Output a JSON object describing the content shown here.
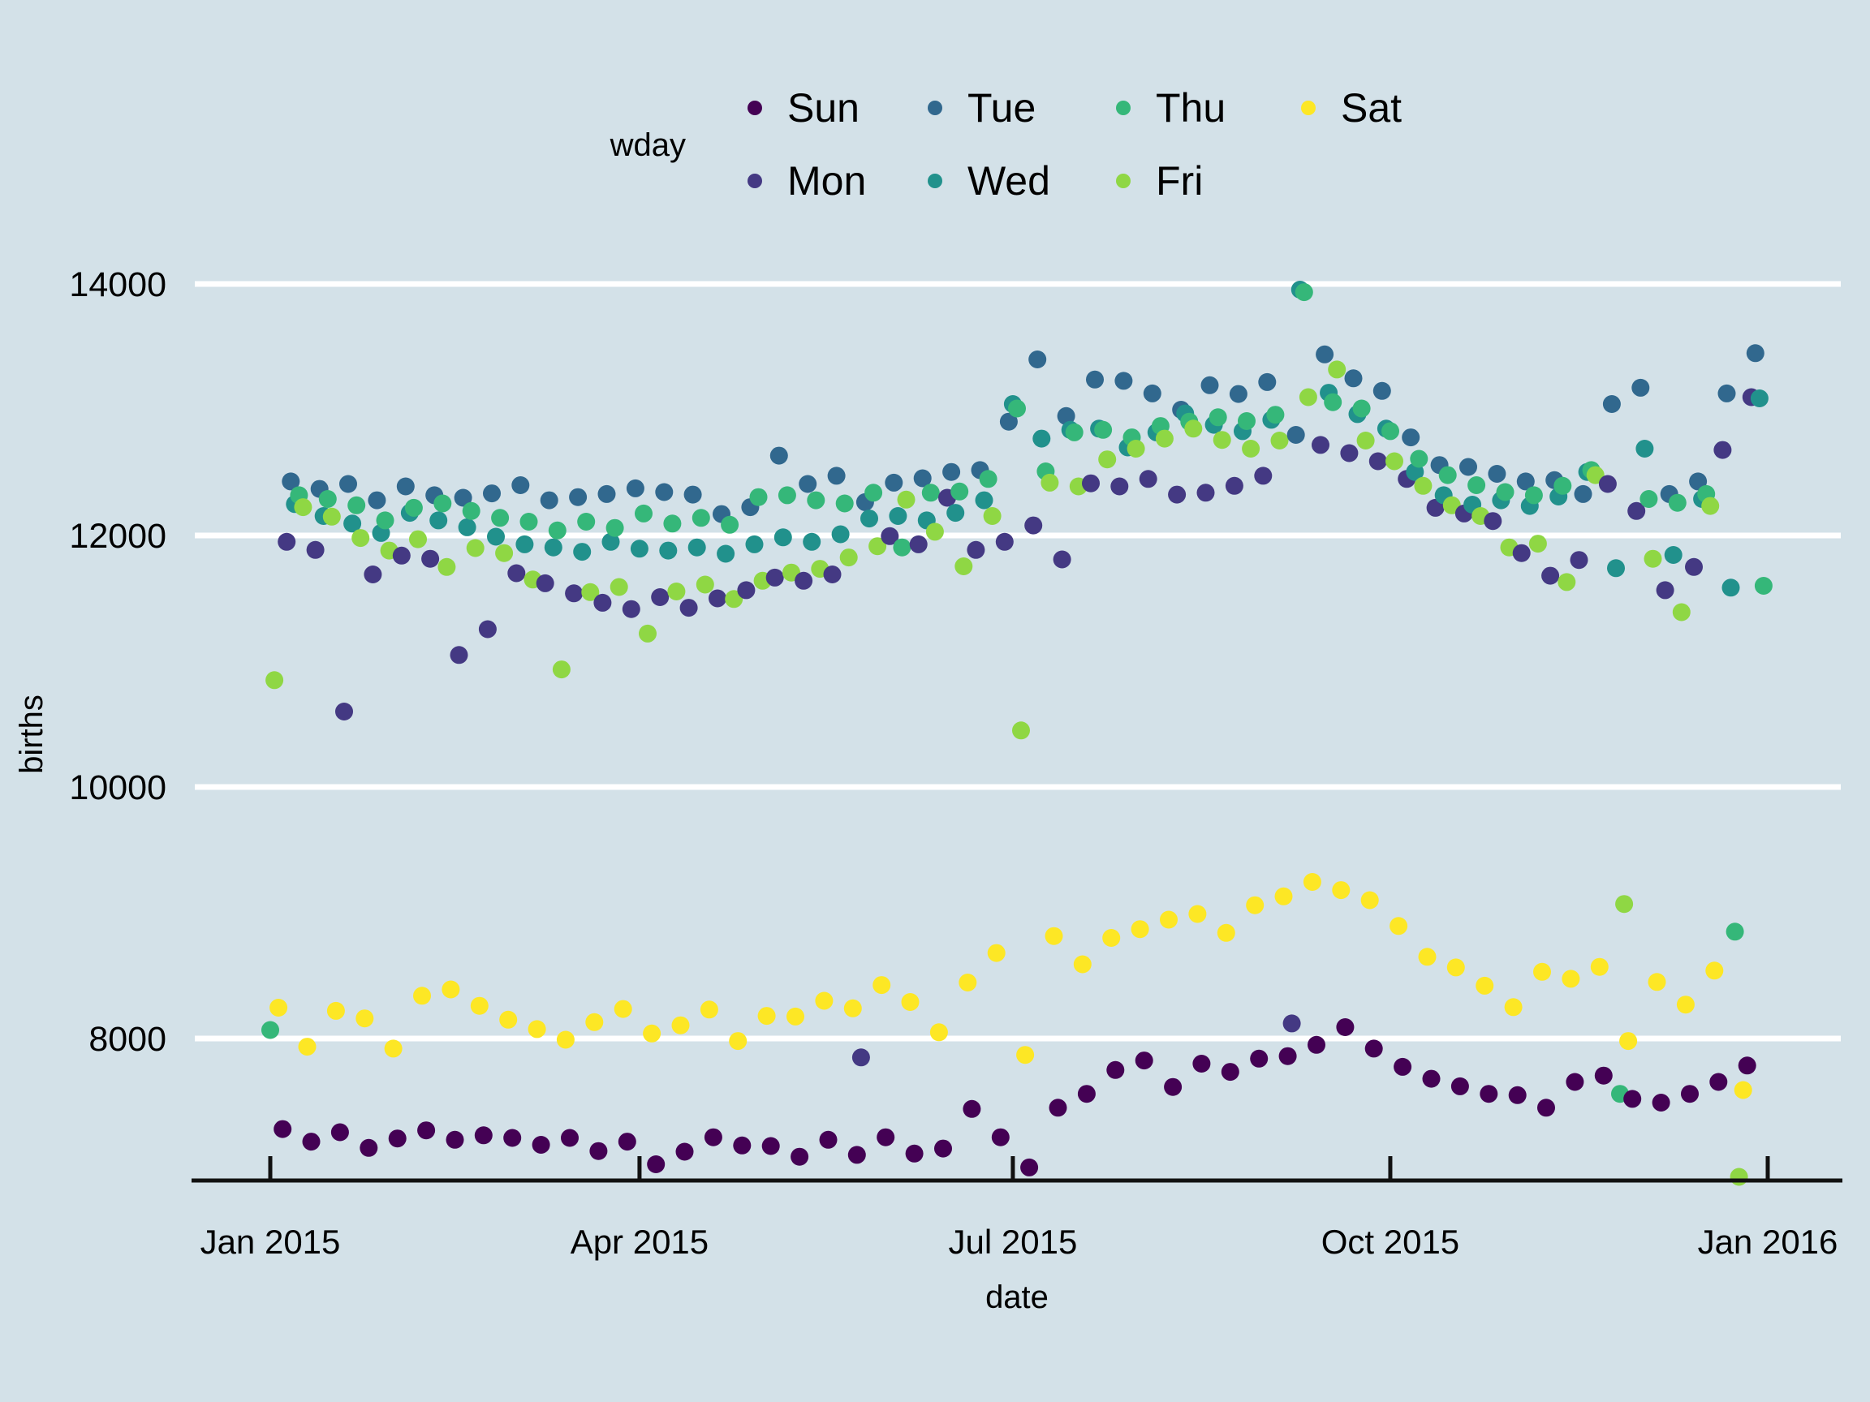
{
  "theme": {
    "background": "#d3e1e8",
    "gridline_color": "#ffffff",
    "axis_line_color": "#111111",
    "text_color": "#000000"
  },
  "legend": {
    "title": "wday",
    "rows": [
      [
        {
          "label": "Sun",
          "color": "#440154"
        },
        {
          "label": "Tue",
          "color": "#31688E"
        },
        {
          "label": "Thu",
          "color": "#35B779"
        },
        {
          "label": "Sat",
          "color": "#FDE725"
        }
      ],
      [
        {
          "label": "Mon",
          "color": "#443983"
        },
        {
          "label": "Wed",
          "color": "#21918C"
        },
        {
          "label": "Fri",
          "color": "#8FD744"
        }
      ]
    ]
  },
  "chart_data": {
    "type": "scatter",
    "title": "",
    "xlabel": "date",
    "ylabel": "births",
    "legend_title": "wday",
    "legend_position": "top",
    "grid": "horizontal-major-only",
    "x_ticks": [
      "Jan 2015",
      "Apr 2015",
      "Jul 2015",
      "Oct 2015",
      "Jan 2016"
    ],
    "x_tick_day_offsets": [
      0,
      90,
      181,
      273,
      365
    ],
    "y_ticks": [
      8000,
      10000,
      12000,
      14000
    ],
    "ylim": [
      6500,
      14600
    ],
    "start_date": "2015-01-01",
    "weekday_of_first_point": "Thu",
    "weekday_cycle_from_jan1": [
      "Thu",
      "Fri",
      "Sat",
      "Sun",
      "Mon",
      "Tue",
      "Wed"
    ],
    "series_colors": {
      "Sun": "#440154",
      "Mon": "#443983",
      "Tue": "#31688E",
      "Wed": "#21918C",
      "Thu": "#35B779",
      "Fri": "#8FD744",
      "Sat": "#FDE725"
    },
    "point_radius_px": 11,
    "births_by_day": [
      8068,
      10850,
      8245,
      7280,
      11950,
      12430,
      12250,
      12320,
      12225,
      7935,
      7180,
      11885,
      12370,
      12155,
      12290,
      12150,
      8220,
      7255,
      10600,
      12410,
      12095,
      12240,
      11980,
      8160,
      7130,
      11690,
      12280,
      12020,
      12120,
      11880,
      7920,
      7205,
      11840,
      12390,
      12180,
      12220,
      11970,
      8340,
      7270,
      11815,
      12320,
      12120,
      12255,
      11750,
      8390,
      7195,
      11050,
      12300,
      12065,
      12195,
      11900,
      8260,
      7230,
      11255,
      12335,
      11990,
      12140,
      11860,
      8150,
      7210,
      11700,
      12400,
      11930,
      12110,
      11650,
      8075,
      7155,
      11620,
      12280,
      11905,
      12040,
      10935,
      7990,
      7210,
      11540,
      12305,
      11870,
      12110,
      11550,
      8130,
      7105,
      11465,
      12330,
      11950,
      12060,
      11590,
      8235,
      7180,
      11415,
      12375,
      11895,
      12175,
      11220,
      8040,
      7000,
      11510,
      12345,
      11880,
      12095,
      11555,
      8105,
      7100,
      11425,
      12325,
      11905,
      12140,
      11610,
      8230,
      7215,
      11500,
      12170,
      11855,
      12085,
      11495,
      7980,
      7150,
      11565,
      12225,
      11930,
      12305,
      11640,
      8180,
      7145,
      11665,
      12635,
      11985,
      12320,
      11705,
      8175,
      7060,
      11640,
      12410,
      11950,
      12280,
      11735,
      8300,
      7195,
      11690,
      12475,
      12010,
      12255,
      11825,
      8240,
      7075,
      7850,
      12265,
      12135,
      12340,
      11915,
      8425,
      7215,
      11995,
      12420,
      12155,
      11905,
      12285,
      8290,
      7085,
      11930,
      12455,
      12120,
      12340,
      12030,
      8050,
      7125,
      12300,
      12505,
      12180,
      12350,
      11755,
      8445,
      7440,
      11885,
      12520,
      12280,
      12450,
      12155,
      8680,
      7215,
      11950,
      12905,
      13045,
      13010,
      10450,
      7870,
      6975,
      12080,
      13400,
      12770,
      12510,
      12420,
      8815,
      7450,
      11810,
      12950,
      12840,
      12820,
      12390,
      8590,
      7560,
      12415,
      13240,
      12850,
      12840,
      12605,
      8800,
      7750,
      12390,
      13230,
      12700,
      12780,
      12690,
      8870,
      7825,
      12450,
      13130,
      12820,
      12870,
      12770,
      8945,
      7615,
      12325,
      13000,
      12970,
      12905,
      12850,
      8990,
      7800,
      12340,
      13195,
      12880,
      12940,
      12760,
      8840,
      7735,
      12395,
      13125,
      12830,
      12910,
      12690,
      9060,
      7840,
      12475,
      13220,
      12920,
      12960,
      12755,
      9130,
      7860,
      8120,
      12800,
      13955,
      13935,
      13100,
      9245,
      7950,
      12720,
      13440,
      13135,
      13060,
      13320,
      9180,
      8090,
      12655,
      13250,
      12965,
      13010,
      12755,
      9100,
      7920,
      12590,
      13150,
      12850,
      12830,
      12590,
      8895,
      7775,
      12450,
      12780,
      12505,
      12610,
      12395,
      8650,
      7680,
      12220,
      12560,
      12320,
      12480,
      12240,
      8565,
      7620,
      12175,
      12545,
      12245,
      12400,
      12155,
      8420,
      7560,
      12115,
      12490,
      12280,
      12345,
      11905,
      8250,
      7550,
      11860,
      12430,
      12235,
      12320,
      11935,
      8530,
      7450,
      11680,
      12440,
      12310,
      12395,
      11630,
      8475,
      7655,
      11805,
      12330,
      12505,
      12520,
      12480,
      8570,
      7705,
      12410,
      13045,
      11740,
      7560,
      9070,
      7980,
      7520,
      12195,
      13175,
      12690,
      12290,
      11815,
      8450,
      7490,
      11565,
      12330,
      11845,
      12260,
      11390,
      8270,
      7560,
      11750,
      12430,
      12290,
      12330,
      12235,
      8540,
      7655,
      12680,
      13130,
      11585,
      8850,
      6900,
      7590,
      7785,
      13100,
      13450,
      13090,
      11600
    ]
  }
}
